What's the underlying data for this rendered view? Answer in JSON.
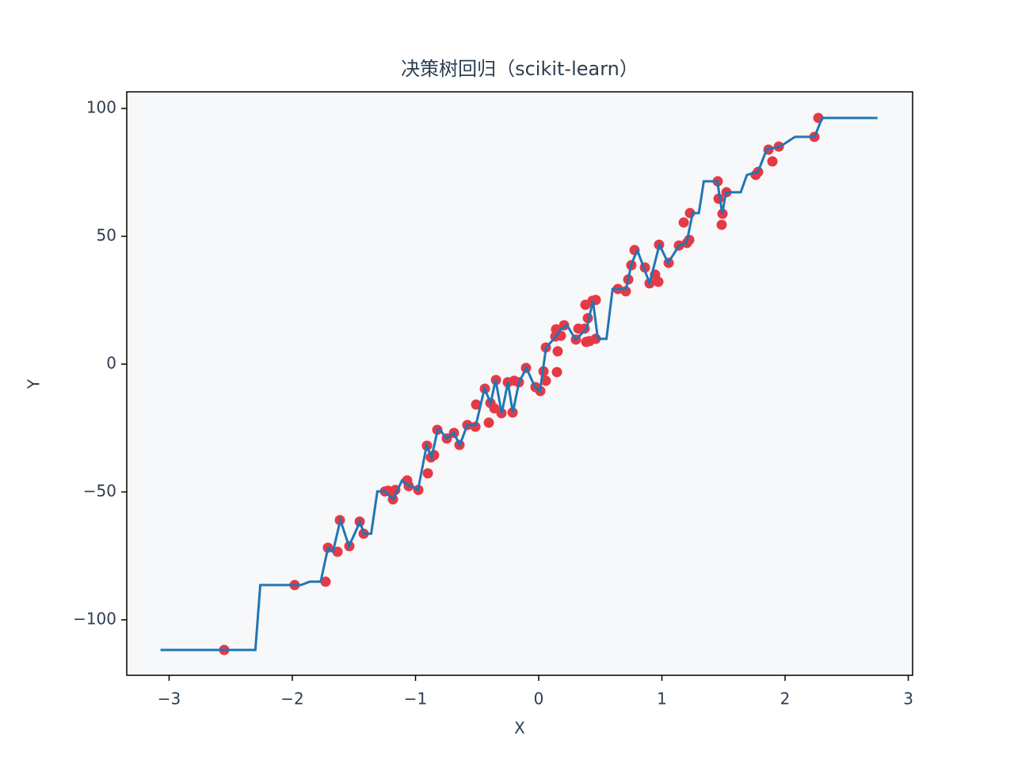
{
  "chart_data": {
    "type": "scatter",
    "title": "决策树回归（scikit-learn）",
    "xlabel": "X",
    "ylabel": "Y",
    "xlim": [
      -3.344,
      3.035
    ],
    "ylim": [
      -121.7,
      106.5
    ],
    "xticks": [
      {
        "value": -3,
        "label": "−3"
      },
      {
        "value": -2,
        "label": "−2"
      },
      {
        "value": -1,
        "label": "−1"
      },
      0,
      1,
      2,
      3
    ],
    "yticks": [
      {
        "value": -100,
        "label": "−100"
      },
      {
        "value": -50,
        "label": "−50"
      },
      0,
      50,
      100
    ],
    "background": "#f7f8fa",
    "series": [
      {
        "type": "scatter",
        "color": "#e63946",
        "x": [
          -2.553,
          -1.981,
          -1.73,
          -1.711,
          -1.633,
          -1.614,
          -1.537,
          -1.453,
          -1.421,
          -1.248,
          -1.222,
          -1.183,
          -1.164,
          -1.068,
          -1.055,
          -0.977,
          -0.907,
          -0.9,
          -0.875,
          -0.849,
          -0.823,
          -0.746,
          -0.688,
          -0.643,
          -0.579,
          -0.514,
          -0.508,
          -0.437,
          -0.405,
          -0.392,
          -0.36,
          -0.347,
          -0.302,
          -0.251,
          -0.212,
          -0.199,
          -0.161,
          -0.103,
          -0.026,
          0.013,
          0.039,
          0.058,
          0.058,
          0.135,
          0.141,
          0.148,
          0.154,
          0.18,
          0.206,
          0.302,
          0.322,
          0.373,
          0.379,
          0.386,
          0.399,
          0.412,
          0.437,
          0.463,
          0.463,
          0.643,
          0.707,
          0.727,
          0.752,
          0.778,
          0.862,
          0.9,
          0.945,
          0.971,
          0.977,
          1.055,
          1.138,
          1.177,
          1.203,
          1.222,
          1.228,
          1.453,
          1.46,
          1.485,
          1.492,
          1.524,
          1.762,
          1.781,
          1.865,
          1.897,
          1.949,
          2.238,
          2.27
        ],
        "y": [
          -111.8,
          -86.4,
          -85.1,
          -71.8,
          -73.4,
          -61.0,
          -71.2,
          -61.6,
          -66.3,
          -49.8,
          -49.5,
          -52.9,
          -49.2,
          -45.5,
          -47.7,
          -49.2,
          -31.9,
          -42.7,
          -36.5,
          -35.6,
          -25.7,
          -29.1,
          -26.9,
          -31.6,
          -23.8,
          -24.5,
          -15.8,
          -9.6,
          -22.9,
          -15.2,
          -17.3,
          -6.2,
          -19.2,
          -7.1,
          -18.9,
          -6.5,
          -7.1,
          -1.5,
          -9.0,
          -10.5,
          -2.8,
          6.5,
          -6.5,
          10.8,
          13.6,
          -3.1,
          5.0,
          11.1,
          15.2,
          9.6,
          13.9,
          13.9,
          23.2,
          8.7,
          18.0,
          9.0,
          24.8,
          25.1,
          9.9,
          29.4,
          28.5,
          33.1,
          38.7,
          44.6,
          37.8,
          31.6,
          35.0,
          32.2,
          46.7,
          39.6,
          46.4,
          55.4,
          47.4,
          48.6,
          59.1,
          71.5,
          64.7,
          54.5,
          58.8,
          67.2,
          74.0,
          75.2,
          83.9,
          79.3,
          85.1,
          88.9,
          96.3
        ]
      },
      {
        "type": "line",
        "color": "#1f77b4",
        "x": [
          -3.07,
          -2.3,
          -2.26,
          -1.93,
          -1.86,
          -1.77,
          -1.71,
          -1.67,
          -1.61,
          -1.54,
          -1.45,
          -1.42,
          -1.36,
          -1.31,
          -1.25,
          -1.18,
          -1.11,
          -1.05,
          -1.03,
          -0.98,
          -0.91,
          -0.87,
          -0.82,
          -0.8,
          -0.75,
          -0.69,
          -0.64,
          -0.58,
          -0.51,
          -0.44,
          -0.39,
          -0.35,
          -0.3,
          -0.25,
          -0.21,
          -0.16,
          -0.1,
          -0.03,
          0.01,
          0.06,
          0.14,
          0.18,
          0.23,
          0.3,
          0.39,
          0.44,
          0.48,
          0.55,
          0.6,
          0.71,
          0.75,
          0.8,
          0.9,
          0.98,
          1.05,
          1.14,
          1.2,
          1.25,
          1.3,
          1.34,
          1.45,
          1.49,
          1.52,
          1.64,
          1.69,
          1.78,
          1.85,
          1.96,
          2.08,
          2.24,
          2.3,
          2.75
        ],
        "y": [
          -111.8,
          -111.8,
          -86.4,
          -86.4,
          -85.1,
          -85.1,
          -71.8,
          -73.4,
          -61.0,
          -71.2,
          -61.6,
          -66.3,
          -66.3,
          -49.8,
          -49.8,
          -52.9,
          -45.5,
          -47.7,
          -47.7,
          -49.2,
          -31.9,
          -36.5,
          -25.7,
          -25.7,
          -29.1,
          -26.9,
          -31.6,
          -23.8,
          -23.8,
          -9.6,
          -15.2,
          -6.2,
          -19.2,
          -7.1,
          -18.9,
          -7.1,
          -1.5,
          -9.0,
          -10.5,
          6.5,
          10.8,
          13.6,
          15.2,
          9.6,
          13.9,
          24.8,
          9.9,
          9.9,
          29.4,
          29.4,
          38.7,
          44.6,
          31.6,
          46.7,
          39.6,
          46.4,
          47.4,
          59.1,
          59.1,
          71.5,
          71.5,
          58.8,
          67.2,
          67.2,
          74.0,
          75.2,
          83.9,
          85.1,
          88.9,
          88.9,
          96.3,
          96.3
        ]
      }
    ]
  }
}
